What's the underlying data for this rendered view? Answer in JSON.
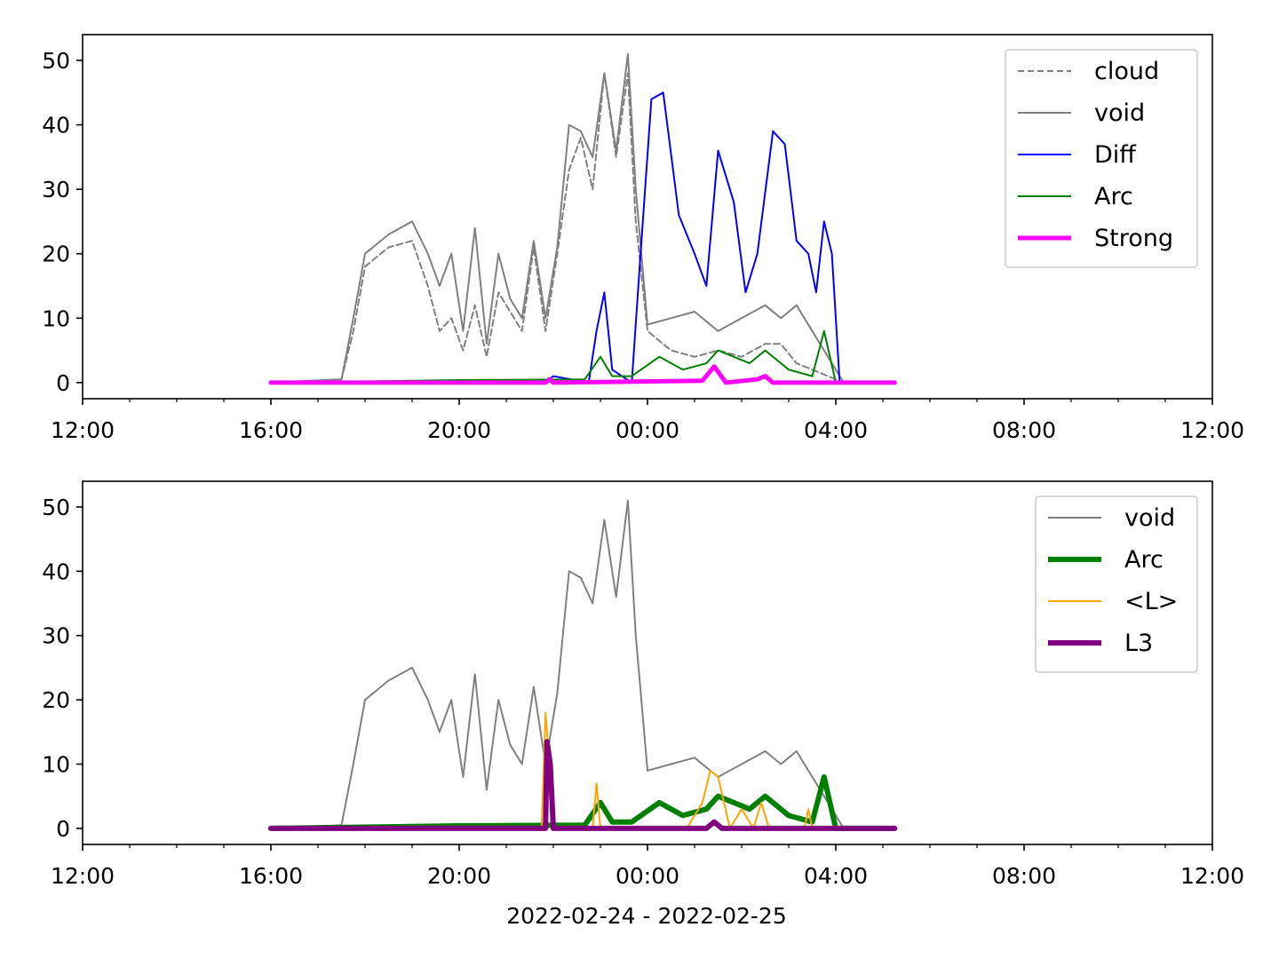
{
  "chart_data": [
    {
      "type": "line",
      "x_axis": {
        "type": "time",
        "range": [
          "2022-02-24 12:00",
          "2022-02-25 12:00"
        ],
        "tick_labels": [
          "12:00",
          "16:00",
          "20:00",
          "00:00",
          "04:00",
          "08:00",
          "12:00"
        ]
      },
      "y_axis": {
        "range": [
          -2.5,
          54
        ],
        "ticks": [
          "0",
          "10",
          "20",
          "30",
          "40",
          "50"
        ]
      },
      "legend_position": "top-right",
      "xlabel": "",
      "series": [
        {
          "name": "cloud",
          "color": "#808080",
          "dash": "dashed",
          "width": 1,
          "x": [
            "2022-02-24 16:00",
            "2022-02-24 17:30",
            "2022-02-24 17:45",
            "2022-02-24 18:00",
            "2022-02-24 18:30",
            "2022-02-24 19:00",
            "2022-02-24 19:20",
            "2022-02-24 19:35",
            "2022-02-24 19:50",
            "2022-02-24 20:05",
            "2022-02-24 20:20",
            "2022-02-24 20:35",
            "2022-02-24 20:50",
            "2022-02-24 21:05",
            "2022-02-24 21:20",
            "2022-02-24 21:35",
            "2022-02-24 21:50",
            "2022-02-24 22:05",
            "2022-02-24 22:20",
            "2022-02-24 22:35",
            "2022-02-24 22:50",
            "2022-02-24 23:05",
            "2022-02-24 23:20",
            "2022-02-24 23:35",
            "2022-02-24 23:45",
            "2022-02-25 00:00",
            "2022-02-25 00:30",
            "2022-02-25 01:00",
            "2022-02-25 01:30",
            "2022-02-25 02:00",
            "2022-02-25 02:30",
            "2022-02-25 02:50",
            "2022-02-25 03:10",
            "2022-02-25 03:30",
            "2022-02-25 03:50",
            "2022-02-25 04:10",
            "2022-02-25 05:15"
          ],
          "y": [
            0,
            0.5,
            8,
            18,
            21,
            22,
            15,
            8,
            10,
            5,
            12,
            4,
            14,
            11,
            8,
            21,
            8,
            20,
            33,
            38,
            30,
            48,
            35,
            48,
            25,
            8,
            5,
            4,
            5,
            4,
            6,
            6,
            3,
            2,
            1,
            0,
            0
          ]
        },
        {
          "name": "void",
          "color": "#808080",
          "width": 1,
          "x": [
            "2022-02-24 16:00",
            "2022-02-24 17:30",
            "2022-02-24 17:45",
            "2022-02-24 18:00",
            "2022-02-24 18:30",
            "2022-02-24 19:00",
            "2022-02-24 19:20",
            "2022-02-24 19:35",
            "2022-02-24 19:50",
            "2022-02-24 20:05",
            "2022-02-24 20:20",
            "2022-02-24 20:35",
            "2022-02-24 20:50",
            "2022-02-24 21:05",
            "2022-02-24 21:20",
            "2022-02-24 21:35",
            "2022-02-24 21:50",
            "2022-02-24 22:05",
            "2022-02-24 22:20",
            "2022-02-24 22:35",
            "2022-02-24 22:50",
            "2022-02-24 23:05",
            "2022-02-24 23:20",
            "2022-02-24 23:35",
            "2022-02-24 23:45",
            "2022-02-25 00:00",
            "2022-02-25 00:30",
            "2022-02-25 01:00",
            "2022-02-25 01:30",
            "2022-02-25 02:00",
            "2022-02-25 02:30",
            "2022-02-25 02:50",
            "2022-02-25 03:10",
            "2022-02-25 03:30",
            "2022-02-25 03:50",
            "2022-02-25 04:10",
            "2022-02-25 05:15"
          ],
          "y": [
            0,
            0.5,
            10,
            20,
            23,
            25,
            20,
            15,
            20,
            8,
            24,
            6,
            20,
            13,
            10,
            22,
            10,
            21,
            40,
            39,
            35,
            48,
            36,
            51,
            30,
            9,
            10,
            11,
            8,
            10,
            12,
            10,
            12,
            8,
            4,
            0,
            0
          ]
        },
        {
          "name": "Diff",
          "color": "#0000ff",
          "width": 1,
          "x": [
            "2022-02-24 16:00",
            "2022-02-24 21:50",
            "2022-02-24 22:00",
            "2022-02-24 22:45",
            "2022-02-24 22:55",
            "2022-02-24 23:05",
            "2022-02-24 23:15",
            "2022-02-24 23:40",
            "2022-02-24 23:50",
            "2022-02-25 00:05",
            "2022-02-25 00:20",
            "2022-02-25 00:40",
            "2022-02-25 01:00",
            "2022-02-25 01:15",
            "2022-02-25 01:30",
            "2022-02-25 01:50",
            "2022-02-25 02:05",
            "2022-02-25 02:20",
            "2022-02-25 02:40",
            "2022-02-25 02:55",
            "2022-02-25 03:10",
            "2022-02-25 03:25",
            "2022-02-25 03:35",
            "2022-02-25 03:45",
            "2022-02-25 03:55",
            "2022-02-25 04:05",
            "2022-02-25 05:15"
          ],
          "y": [
            0,
            0,
            1,
            0,
            8,
            14,
            2,
            0,
            18,
            44,
            45,
            26,
            20,
            15,
            36,
            28,
            14,
            20,
            39,
            37,
            22,
            20,
            14,
            25,
            20,
            0,
            0
          ]
        },
        {
          "name": "Arc",
          "color": "#008000",
          "width": 1,
          "x": [
            "2022-02-24 16:00",
            "2022-02-24 20:00",
            "2022-02-24 22:40",
            "2022-02-24 23:00",
            "2022-02-24 23:15",
            "2022-02-24 23:40",
            "2022-02-25 00:15",
            "2022-02-25 00:45",
            "2022-02-25 01:15",
            "2022-02-25 01:30",
            "2022-02-25 01:50",
            "2022-02-25 02:10",
            "2022-02-25 02:30",
            "2022-02-25 03:00",
            "2022-02-25 03:30",
            "2022-02-25 03:45",
            "2022-02-25 04:00",
            "2022-02-25 05:15"
          ],
          "y": [
            0,
            0.4,
            0.5,
            4,
            1,
            1,
            4,
            2,
            3,
            5,
            4,
            3,
            5,
            2,
            1,
            8,
            0,
            0
          ]
        },
        {
          "name": "Strong",
          "color": "#ff00ff",
          "width": 2.5,
          "x": [
            "2022-02-24 16:00",
            "2022-02-24 21:50",
            "2022-02-24 21:55",
            "2022-02-24 22:00",
            "2022-02-25 01:10",
            "2022-02-25 01:25",
            "2022-02-25 01:40",
            "2022-02-25 02:20",
            "2022-02-25 02:30",
            "2022-02-25 02:40",
            "2022-02-25 05:15"
          ],
          "y": [
            0,
            0,
            0.5,
            0,
            0.3,
            2.5,
            0,
            0.5,
            1,
            0,
            0
          ]
        }
      ]
    },
    {
      "type": "line",
      "x_axis": {
        "type": "time",
        "range": [
          "2022-02-24 12:00",
          "2022-02-25 12:00"
        ],
        "tick_labels": [
          "12:00",
          "16:00",
          "20:00",
          "00:00",
          "04:00",
          "08:00",
          "12:00"
        ]
      },
      "y_axis": {
        "range": [
          -2.5,
          54
        ],
        "ticks": [
          "0",
          "10",
          "20",
          "30",
          "40",
          "50"
        ]
      },
      "legend_position": "top-right",
      "xlabel": "2022-02-24 - 2022-02-25",
      "series": [
        {
          "name": "void",
          "color": "#808080",
          "width": 1,
          "x": [
            "2022-02-24 16:00",
            "2022-02-24 17:30",
            "2022-02-24 17:45",
            "2022-02-24 18:00",
            "2022-02-24 18:30",
            "2022-02-24 19:00",
            "2022-02-24 19:20",
            "2022-02-24 19:35",
            "2022-02-24 19:50",
            "2022-02-24 20:05",
            "2022-02-24 20:20",
            "2022-02-24 20:35",
            "2022-02-24 20:50",
            "2022-02-24 21:05",
            "2022-02-24 21:20",
            "2022-02-24 21:35",
            "2022-02-24 21:50",
            "2022-02-24 22:05",
            "2022-02-24 22:20",
            "2022-02-24 22:35",
            "2022-02-24 22:50",
            "2022-02-24 23:05",
            "2022-02-24 23:20",
            "2022-02-24 23:35",
            "2022-02-24 23:45",
            "2022-02-25 00:00",
            "2022-02-25 00:30",
            "2022-02-25 01:00",
            "2022-02-25 01:30",
            "2022-02-25 02:00",
            "2022-02-25 02:30",
            "2022-02-25 02:50",
            "2022-02-25 03:10",
            "2022-02-25 03:30",
            "2022-02-25 03:50",
            "2022-02-25 04:10",
            "2022-02-25 05:15"
          ],
          "y": [
            0,
            0.5,
            10,
            20,
            23,
            25,
            20,
            15,
            20,
            8,
            24,
            6,
            20,
            13,
            10,
            22,
            10,
            21,
            40,
            39,
            35,
            48,
            36,
            51,
            30,
            9,
            10,
            11,
            8,
            10,
            12,
            10,
            12,
            8,
            4,
            0,
            0
          ]
        },
        {
          "name": "Arc",
          "color": "#008000",
          "width": 3,
          "x": [
            "2022-02-24 16:00",
            "2022-02-24 20:00",
            "2022-02-24 22:40",
            "2022-02-24 23:00",
            "2022-02-24 23:15",
            "2022-02-24 23:40",
            "2022-02-25 00:15",
            "2022-02-25 00:45",
            "2022-02-25 01:15",
            "2022-02-25 01:30",
            "2022-02-25 01:50",
            "2022-02-25 02:10",
            "2022-02-25 02:30",
            "2022-02-25 03:00",
            "2022-02-25 03:30",
            "2022-02-25 03:45",
            "2022-02-25 04:00",
            "2022-02-25 05:15"
          ],
          "y": [
            0,
            0.4,
            0.5,
            4,
            1,
            1,
            4,
            2,
            3,
            5,
            4,
            3,
            5,
            2,
            1,
            8,
            0,
            0
          ]
        },
        {
          "name": "<L>",
          "color": "#ffa500",
          "width": 1,
          "x": [
            "2022-02-24 16:00",
            "2022-02-24 21:45",
            "2022-02-24 21:50",
            "2022-02-24 21:55",
            "2022-02-24 22:00",
            "2022-02-24 22:50",
            "2022-02-24 22:55",
            "2022-02-24 23:00",
            "2022-02-25 00:50",
            "2022-02-25 01:10",
            "2022-02-25 01:20",
            "2022-02-25 01:30",
            "2022-02-25 01:45",
            "2022-02-25 02:00",
            "2022-02-25 02:15",
            "2022-02-25 02:25",
            "2022-02-25 02:35",
            "2022-02-25 03:20",
            "2022-02-25 03:25",
            "2022-02-25 03:30",
            "2022-02-25 05:15"
          ],
          "y": [
            0,
            0,
            18,
            10,
            0,
            0,
            7,
            0,
            0,
            4,
            9,
            8,
            0,
            3,
            0,
            4,
            0,
            0,
            3,
            0,
            0
          ]
        },
        {
          "name": "L3",
          "color": "#800080",
          "width": 3,
          "x": [
            "2022-02-24 16:00",
            "2022-02-24 21:50",
            "2022-02-24 21:52",
            "2022-02-24 21:56",
            "2022-02-24 22:00",
            "2022-02-25 01:15",
            "2022-02-25 01:25",
            "2022-02-25 01:35",
            "2022-02-25 05:15"
          ],
          "y": [
            0,
            0,
            13.5,
            10,
            0,
            0,
            1,
            0,
            0
          ]
        }
      ]
    }
  ]
}
